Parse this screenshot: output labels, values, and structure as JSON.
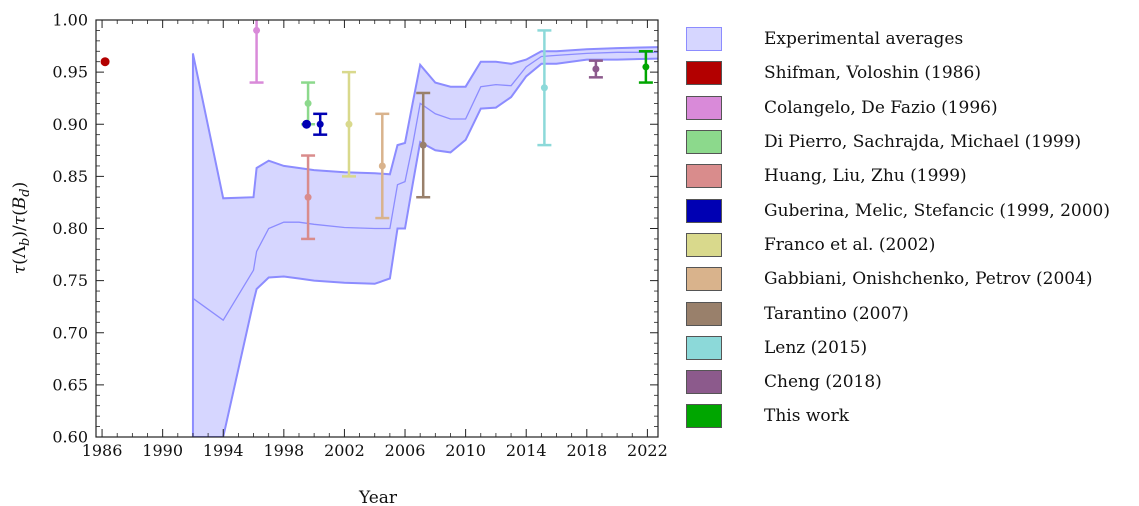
{
  "chart_data": {
    "type": "line",
    "xlabel": "Year",
    "ylabel": "τ(Λb)/τ(Bd)",
    "xlim": [
      1985.6,
      2022.7
    ],
    "ylim": [
      0.6,
      1.0
    ],
    "x_ticks": [
      1986,
      1990,
      1994,
      1998,
      2002,
      2006,
      2010,
      2014,
      2018,
      2022
    ],
    "y_ticks": [
      0.6,
      0.65,
      0.7,
      0.75,
      0.8,
      0.85,
      0.9,
      0.95,
      1.0
    ],
    "y_tick_labels": [
      "0.60",
      "0.65",
      "0.70",
      "0.75",
      "0.80",
      "0.85",
      "0.90",
      "0.95",
      "1.00"
    ],
    "grid": false,
    "legend_position": "right, outside",
    "band": {
      "name": "Experimental averages",
      "color": "#8c8cff",
      "fill": "#d6d6ff",
      "x": [
        1992,
        1994,
        1996,
        1996.2,
        1997,
        1998,
        1999,
        2000,
        2002,
        2004,
        2005,
        2005.5,
        2006,
        2006.5,
        2007,
        2008,
        2009,
        2010,
        2011,
        2012,
        2013,
        2014,
        2015,
        2016,
        2018,
        2020,
        2022.7
      ],
      "upper": [
        0.968,
        0.829,
        0.83,
        0.858,
        0.865,
        0.86,
        0.858,
        0.856,
        0.854,
        0.853,
        0.852,
        0.88,
        0.882,
        0.92,
        0.957,
        0.94,
        0.936,
        0.936,
        0.96,
        0.96,
        0.958,
        0.962,
        0.97,
        0.97,
        0.972,
        0.973,
        0.974
      ],
      "central": [
        0.733,
        0.712,
        0.76,
        0.778,
        0.8,
        0.806,
        0.806,
        0.804,
        0.801,
        0.8,
        0.8,
        0.842,
        0.845,
        0.88,
        0.92,
        0.91,
        0.905,
        0.905,
        0.936,
        0.938,
        0.937,
        0.955,
        0.965,
        0.966,
        0.968,
        0.969,
        0.969
      ],
      "lower": [
        0.6,
        0.6,
        0.73,
        0.742,
        0.753,
        0.754,
        0.752,
        0.75,
        0.748,
        0.747,
        0.752,
        0.8,
        0.8,
        0.842,
        0.883,
        0.875,
        0.873,
        0.885,
        0.915,
        0.916,
        0.926,
        0.946,
        0.958,
        0.958,
        0.962,
        0.962,
        0.963
      ]
    },
    "series": [
      {
        "name": "Experimental averages",
        "color": "#d6d6ff",
        "points": []
      },
      {
        "name": "Shifman, Voloshin (1986)",
        "color": "#b30000",
        "points": [
          {
            "x": 1986.2,
            "y": 0.96
          }
        ]
      },
      {
        "name": "Colangelo, De Fazio (1996)",
        "color": "#d98ad9",
        "points": [
          {
            "x": 1996.2,
            "y": 0.99,
            "lo": 0.94,
            "hi": 1.04
          }
        ]
      },
      {
        "name": "Di Pierro, Sachrajda, Michael (1999)",
        "color": "#8cd98c",
        "points": [
          {
            "x": 1999.6,
            "y": 0.92,
            "lo": 0.9,
            "hi": 0.94
          }
        ]
      },
      {
        "name": "Huang, Liu, Zhu (1999)",
        "color": "#d98c8c",
        "points": [
          {
            "x": 1999.6,
            "y": 0.83,
            "lo": 0.79,
            "hi": 0.87
          }
        ]
      },
      {
        "name": "Guberina, Melic, Stefancic (1999, 2000)",
        "color": "#0000b3",
        "points": [
          {
            "x": 1999.5,
            "y": 0.9
          },
          {
            "x": 2000.4,
            "y": 0.9,
            "lo": 0.89,
            "hi": 0.91
          }
        ]
      },
      {
        "name": "Franco et al. (2002)",
        "color": "#d9d98c",
        "points": [
          {
            "x": 2002.3,
            "y": 0.9,
            "lo": 0.85,
            "hi": 0.95
          }
        ]
      },
      {
        "name": "Gabbiani, Onishchenko, Petrov (2004)",
        "color": "#d9b38c",
        "points": [
          {
            "x": 2004.5,
            "y": 0.86,
            "lo": 0.81,
            "hi": 0.91
          }
        ]
      },
      {
        "name": "Tarantino (2007)",
        "color": "#99806b",
        "points": [
          {
            "x": 2007.2,
            "y": 0.88,
            "lo": 0.83,
            "hi": 0.93
          }
        ]
      },
      {
        "name": "Lenz (2015)",
        "color": "#8cd9d9",
        "points": [
          {
            "x": 2015.2,
            "y": 0.935,
            "lo": 0.88,
            "hi": 0.99
          }
        ]
      },
      {
        "name": "Cheng (2018)",
        "color": "#8c5a8c",
        "points": [
          {
            "x": 2018.6,
            "y": 0.953,
            "lo": 0.945,
            "hi": 0.961
          }
        ]
      },
      {
        "name": "This work",
        "color": "#00a600",
        "points": [
          {
            "x": 2021.9,
            "y": 0.955,
            "lo": 0.94,
            "hi": 0.97
          }
        ]
      }
    ]
  }
}
